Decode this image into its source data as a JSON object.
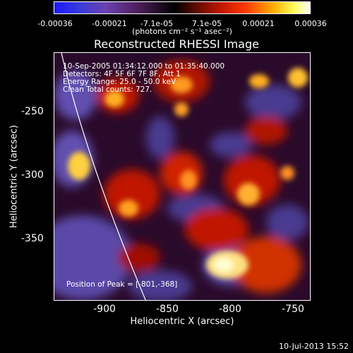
{
  "colorbar": {
    "ticks": [
      "-0.00036",
      "-0.00021",
      "-7.1e-05",
      "7.1e-05",
      "0.00021",
      "0.00036"
    ],
    "unit_label": "(photons cm⁻² s⁻¹ asec⁻²)"
  },
  "plot": {
    "title": "Reconstructed RHESSI Image",
    "info_lines": [
      "10-Sep-2005 01:34:12.000 to 01:35:40.000",
      "Detectors: 4F 5F 6F 7F 8F, Att 1",
      "Energy Range: 25.0 - 50.0 keV",
      "Clean    Total counts: 727."
    ],
    "peak_text": "Position of Peak = [-801,-368]",
    "xlabel": "Heliocentric X (arcsec)",
    "ylabel": "Heliocentric Y (arcsec)",
    "xticks": [
      "-900",
      "-850",
      "-800",
      "-750"
    ],
    "yticks": [
      "-250",
      "-300",
      "-350"
    ]
  },
  "timestamp": "10-Jul-2013 15:52",
  "colors": {
    "background": "#000000",
    "text": "#ffffff",
    "limb_line": "#ffffff"
  }
}
